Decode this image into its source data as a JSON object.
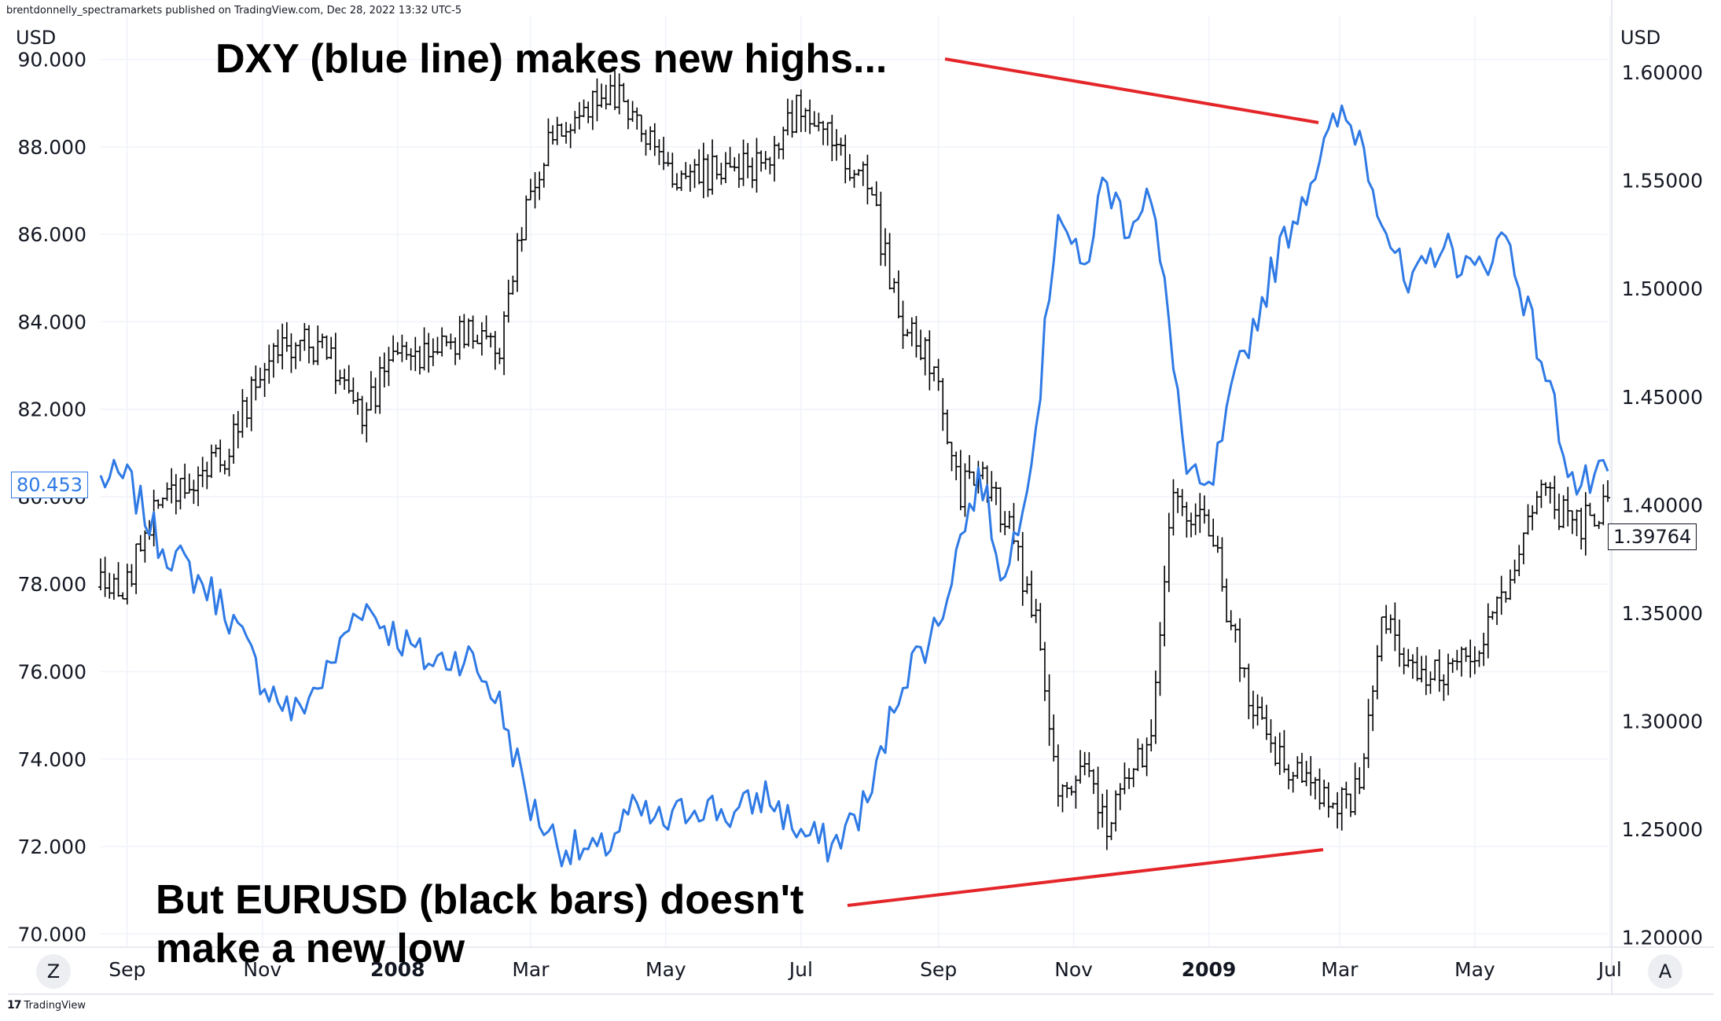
{
  "header": {
    "publisher": "brentdonnelly_spectramarkets published on TradingView.com, Dec 28, 2022 13:32 UTC-5"
  },
  "footer": {
    "brand": "TradingView",
    "brand_mark": "17"
  },
  "controls": {
    "left_button": "Z",
    "right_button": "A"
  },
  "annotations": {
    "top": "DXY (blue line) makes new highs...",
    "bottom": "But EURUSD (black bars) doesn't make a new low"
  },
  "colors": {
    "dxy_line": "#2f7ae5",
    "eurusd_bars": "#000000",
    "annotation_line": "#e4262a",
    "grid": "#f0f3fa",
    "text": "#131722"
  },
  "chart_data": {
    "type": "line",
    "overlay": "ohlc_bars",
    "xaxis": {
      "tick_labels": [
        "Sep",
        "Nov",
        "2008",
        "Mar",
        "May",
        "Jul",
        "Sep",
        "Nov",
        "2009",
        "Mar",
        "May",
        "Jul"
      ],
      "tick_dates": [
        "2007-09",
        "2007-11",
        "2008-01",
        "2008-03",
        "2008-05",
        "2008-07",
        "2008-09",
        "2008-11",
        "2009-01",
        "2009-03",
        "2009-05",
        "2009-07"
      ],
      "bold": [
        "2008",
        "2009"
      ],
      "range": [
        "2007-08-20",
        "2009-06-30"
      ]
    },
    "left_axis": {
      "unit": "USD",
      "ticks": [
        "70.000",
        "72.000",
        "74.000",
        "76.000",
        "78.000",
        "80.000",
        "82.000",
        "84.000",
        "86.000",
        "88.000",
        "90.000"
      ],
      "range": [
        69.7,
        91.0
      ],
      "last_value_label": "80.453"
    },
    "right_axis": {
      "unit": "USD",
      "ticks": [
        "1.20000",
        "1.25000",
        "1.30000",
        "1.35000",
        "1.40000",
        "1.45000",
        "1.50000",
        "1.55000",
        "1.60000"
      ],
      "range": [
        1.1955,
        1.6262
      ],
      "last_value_label": "1.39764"
    },
    "grid": true,
    "series": [
      {
        "kind": "line",
        "axis": "left",
        "x": [
          "2007-08-20",
          "2007-09-01",
          "2007-09-15",
          "2007-10-01",
          "2007-10-15",
          "2007-11-01",
          "2007-11-15",
          "2007-12-01",
          "2007-12-15",
          "2008-01-01",
          "2008-01-15",
          "2008-02-01",
          "2008-02-15",
          "2008-03-01",
          "2008-03-15",
          "2008-04-01",
          "2008-04-15",
          "2008-05-01",
          "2008-05-15",
          "2008-06-01",
          "2008-06-15",
          "2008-07-01",
          "2008-07-15",
          "2008-08-01",
          "2008-08-15",
          "2008-09-01",
          "2008-09-10",
          "2008-09-20",
          "2008-10-01",
          "2008-10-15",
          "2008-10-25",
          "2008-11-05",
          "2008-11-15",
          "2008-11-25",
          "2008-12-05",
          "2008-12-15",
          "2008-12-22",
          "2009-01-01",
          "2009-01-15",
          "2009-02-01",
          "2009-02-15",
          "2009-03-01",
          "2009-03-10",
          "2009-03-20",
          "2009-04-01",
          "2009-04-15",
          "2009-05-01",
          "2009-05-15",
          "2009-06-01",
          "2009-06-15",
          "2009-06-30"
        ],
        "y": [
          80.4,
          80.4,
          79.0,
          78.2,
          77.5,
          75.8,
          75.0,
          76.0,
          77.6,
          76.8,
          76.2,
          76.4,
          75.4,
          72.9,
          72.0,
          71.8,
          72.8,
          72.5,
          73.0,
          72.7,
          73.2,
          72.3,
          72.0,
          73.1,
          75.8,
          77.1,
          78.9,
          80.5,
          78.0,
          81.6,
          86.7,
          85.0,
          87.3,
          86.2,
          87.0,
          83.7,
          80.5,
          80.0,
          83.0,
          85.5,
          87.2,
          88.7,
          88.3,
          86.5,
          84.6,
          85.8,
          85.1,
          86.0,
          83.0,
          80.2,
          80.45
        ]
      },
      {
        "kind": "ohlc_bars",
        "axis": "right",
        "x": [
          "2007-08-20",
          "2007-09-01",
          "2007-09-15",
          "2007-10-01",
          "2007-10-15",
          "2007-11-01",
          "2007-11-15",
          "2007-12-01",
          "2007-12-15",
          "2008-01-01",
          "2008-01-15",
          "2008-02-01",
          "2008-02-15",
          "2008-03-01",
          "2008-03-15",
          "2008-04-01",
          "2008-04-15",
          "2008-05-01",
          "2008-05-15",
          "2008-06-01",
          "2008-06-15",
          "2008-07-01",
          "2008-07-15",
          "2008-08-01",
          "2008-08-15",
          "2008-09-01",
          "2008-09-10",
          "2008-09-20",
          "2008-10-01",
          "2008-10-15",
          "2008-10-25",
          "2008-11-05",
          "2008-11-15",
          "2008-11-25",
          "2008-12-05",
          "2008-12-15",
          "2008-12-22",
          "2009-01-01",
          "2009-01-15",
          "2009-02-01",
          "2009-02-15",
          "2009-03-01",
          "2009-03-10",
          "2009-03-20",
          "2009-04-01",
          "2009-04-15",
          "2009-05-01",
          "2009-05-15",
          "2009-06-01",
          "2009-06-15",
          "2009-06-30"
        ],
        "close": [
          1.362,
          1.365,
          1.405,
          1.41,
          1.422,
          1.465,
          1.475,
          1.47,
          1.44,
          1.47,
          1.472,
          1.48,
          1.468,
          1.55,
          1.575,
          1.59,
          1.585,
          1.55,
          1.552,
          1.555,
          1.56,
          1.585,
          1.57,
          1.545,
          1.485,
          1.46,
          1.405,
          1.415,
          1.395,
          1.345,
          1.265,
          1.278,
          1.252,
          1.278,
          1.285,
          1.405,
          1.4,
          1.392,
          1.325,
          1.282,
          1.27,
          1.262,
          1.268,
          1.355,
          1.325,
          1.322,
          1.33,
          1.362,
          1.405,
          1.39,
          1.398
        ]
      }
    ]
  }
}
